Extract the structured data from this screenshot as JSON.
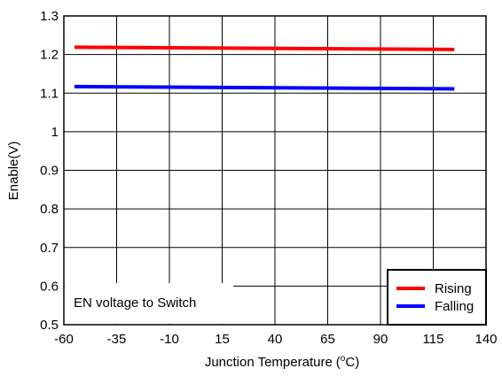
{
  "chart_data": {
    "type": "line",
    "title": "",
    "xlabel": "Junction Temperature",
    "xlabel_unit_prefix": "(",
    "xlabel_unit_sup": "o",
    "xlabel_unit_suffix": "C)",
    "ylabel": "Enable(V)",
    "xlim": [
      -60,
      140
    ],
    "ylim": [
      0.5,
      1.3
    ],
    "x_ticks": [
      "-60",
      "-35",
      "-10",
      "15",
      "40",
      "65",
      "90",
      "115",
      "140"
    ],
    "y_ticks": [
      "0.5",
      "0.6",
      "0.7",
      "0.8",
      "0.9",
      "1",
      "1.1",
      "1.2",
      "1.3"
    ],
    "grid": true,
    "legend_position": "bottom-right",
    "annotation": "EN voltage to Switch",
    "series": [
      {
        "name": "Rising",
        "color": "#ff0000",
        "x": [
          -55,
          125
        ],
        "y": [
          1.219,
          1.213
        ]
      },
      {
        "name": "Falling",
        "color": "#0000ff",
        "x": [
          -55,
          125
        ],
        "y": [
          1.117,
          1.111
        ]
      }
    ]
  }
}
